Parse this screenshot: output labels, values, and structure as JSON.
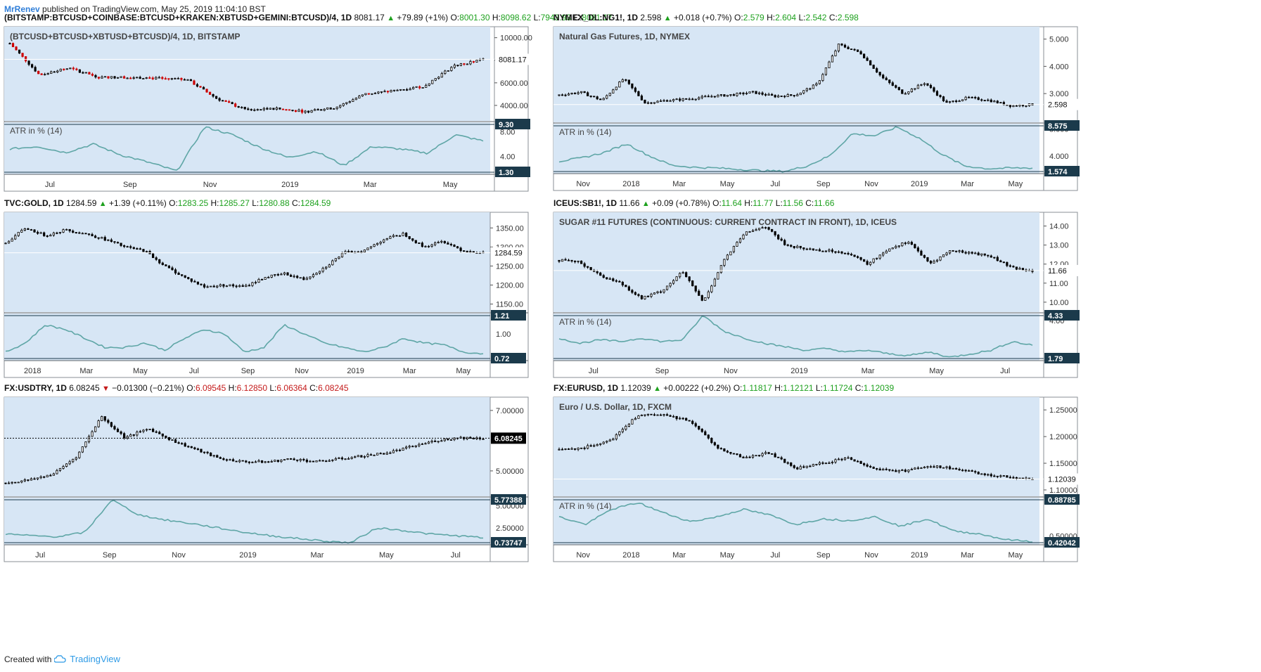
{
  "header": {
    "author": "MrRenev",
    "published": "published on TradingView.com, May 25, 2019 11:04:10 BST"
  },
  "footer": {
    "created_with": "Created with",
    "brand": "TradingView"
  },
  "colors": {
    "panel_bg": "#d7e6f5",
    "atr_line": "#5fa6a6",
    "candle": "#000000",
    "down_candle": "#cc0000",
    "label_bg": "#1b3a4b",
    "green": "#1ea11e",
    "red": "#c41a1a"
  },
  "chart_data": [
    {
      "type": "line",
      "symbol": "(BITSTAMP:BTCUSD+COINBASE:BTCUSD+KRAKEN:XBTUSD+GEMINI:BTCUSD)/4, 1D",
      "last": "8081.17",
      "change": "+79.89 (+1%)",
      "direction": "up",
      "ohlc": {
        "O": "8001.30",
        "H": "8098.62",
        "L": "7943.93",
        "C": "8081.17"
      },
      "legend": "(BTCUSD+BTCUSD+XBTUSD+BTCUSD)/4, 1D, BITSTAMP",
      "price_ticks": [
        "10000.00",
        "8000.00",
        "6000.00",
        "4000.00"
      ],
      "price_tick_values": [
        10000,
        8000,
        6000,
        4000
      ],
      "ylim": [
        3000,
        10600
      ],
      "last_label": "8081.17",
      "x": [
        "2018-05-25",
        "2018-06-20",
        "2018-07-15",
        "2018-08-15",
        "2018-09-15",
        "2018-10-15",
        "2018-11-10",
        "2018-11-20",
        "2018-12-10",
        "2019-01-15",
        "2019-02-10",
        "2019-03-15",
        "2019-04-02",
        "2019-04-20",
        "2019-05-05",
        "2019-05-12",
        "2019-05-25"
      ],
      "values": [
        9500,
        6700,
        7300,
        6500,
        6500,
        6400,
        6300,
        4600,
        3600,
        3700,
        3450,
        3800,
        5000,
        5300,
        5700,
        7500,
        8081
      ],
      "atr": {
        "label": "ATR in % (14)",
        "ticks": [
          "8.00",
          "4.00"
        ],
        "tick_values": [
          8,
          4
        ],
        "ylim": [
          1.3,
          9.3
        ],
        "upper": "9.30",
        "lower": "1.30",
        "values": [
          5.2,
          5.6,
          4.6,
          6.0,
          4.2,
          3.0,
          1.6,
          8.8,
          7.5,
          5.4,
          3.8,
          4.8,
          2.5,
          5.6,
          5.2,
          4.5,
          7.5,
          6.5
        ]
      },
      "x_ticks": [
        "Jul",
        "Sep",
        "Nov",
        "2019",
        "Mar",
        "May"
      ]
    },
    {
      "type": "line",
      "symbol": "NYMEX_DL:NG1!, 1D",
      "last": "2.598",
      "change": "+0.018 (+0.7%)",
      "direction": "up",
      "ohlc": {
        "O": "2.579",
        "H": "2.604",
        "L": "2.542",
        "C": "2.598"
      },
      "legend": "Natural Gas Futures, 1D, NYMEX",
      "price_ticks": [
        "5.000",
        "4.000",
        "3.000"
      ],
      "price_tick_values": [
        5,
        4,
        3
      ],
      "ylim": [
        2.1,
        5.3
      ],
      "last_label": "2.598",
      "values": [
        2.95,
        3.05,
        2.75,
        3.55,
        2.65,
        2.75,
        2.8,
        2.9,
        2.95,
        3.05,
        2.9,
        2.95,
        3.35,
        4.8,
        4.5,
        3.6,
        3.0,
        3.4,
        2.65,
        2.85,
        2.75,
        2.55,
        2.6
      ],
      "atr": {
        "label": "ATR in % (14)",
        "ticks": [
          "8.000",
          "4.000"
        ],
        "tick_values": [
          8,
          4
        ],
        "ylim": [
          1.574,
          8.575
        ],
        "upper": "8.575",
        "lower": "1.574",
        "values": [
          3.2,
          3.7,
          4.5,
          5.8,
          4.0,
          2.6,
          2.3,
          2.2,
          2.0,
          1.8,
          1.7,
          2.5,
          4.0,
          7.3,
          7.0,
          8.3,
          6.6,
          4.2,
          2.5,
          2.1,
          2.2,
          2.2
        ]
      },
      "x_ticks": [
        "Nov",
        "2018",
        "Mar",
        "May",
        "Jul",
        "Sep",
        "Nov",
        "2019",
        "Mar",
        "May"
      ]
    },
    {
      "type": "line",
      "symbol": "TVC:GOLD, 1D",
      "last": "1284.59",
      "change": "+1.39 (+0.11%)",
      "direction": "up",
      "ohlc": {
        "O": "1283.25",
        "H": "1285.27",
        "L": "1280.88",
        "C": "1284.59"
      },
      "legend": "",
      "price_ticks": [
        "1350.00",
        "1300.00",
        "1250.00",
        "1200.00",
        "1150.00"
      ],
      "price_tick_values": [
        1350,
        1300,
        1250,
        1200,
        1150
      ],
      "ylim": [
        1140,
        1380
      ],
      "last_label": "1284.59",
      "values": [
        1310,
        1350,
        1330,
        1345,
        1335,
        1320,
        1300,
        1290,
        1250,
        1220,
        1195,
        1200,
        1195,
        1220,
        1230,
        1215,
        1245,
        1285,
        1290,
        1320,
        1335,
        1300,
        1315,
        1290,
        1285
      ],
      "atr": {
        "label": "",
        "ticks": [
          "1.00"
        ],
        "tick_values": [
          1.0
        ],
        "ylim": [
          0.72,
          1.21
        ],
        "upper": "1.21",
        "lower": "0.72",
        "values": [
          0.8,
          0.9,
          1.1,
          1.05,
          0.95,
          0.85,
          0.85,
          0.9,
          0.82,
          0.95,
          1.05,
          1.0,
          0.8,
          0.85,
          1.1,
          1.0,
          0.9,
          0.85,
          0.8,
          0.85,
          0.95,
          0.9,
          0.88,
          0.8,
          0.78
        ]
      },
      "x_ticks": [
        "2018",
        "Mar",
        "May",
        "Jul",
        "Sep",
        "Nov",
        "2019",
        "Mar",
        "May"
      ]
    },
    {
      "type": "line",
      "symbol": "ICEUS:SB1!, 1D",
      "last": "11.66",
      "change": "+0.09 (+0.78%)",
      "direction": "up",
      "ohlc": {
        "O": "11.64",
        "H": "11.77",
        "L": "11.56",
        "C": "11.66"
      },
      "legend": "SUGAR #11 FUTURES (CONTINUOUS: CURRENT CONTRACT IN FRONT), 1D, ICEUS",
      "price_ticks": [
        "14.00",
        "13.00",
        "12.00",
        "11.00",
        "10.00"
      ],
      "price_tick_values": [
        14,
        13,
        12,
        11,
        10
      ],
      "ylim": [
        9.7,
        14.5
      ],
      "last_label": "11.66",
      "values": [
        12.2,
        12.1,
        11.4,
        11.0,
        10.2,
        10.6,
        11.6,
        10.0,
        12.2,
        13.6,
        14.0,
        13.0,
        12.8,
        12.7,
        12.6,
        12.0,
        12.8,
        13.2,
        12.0,
        12.7,
        12.6,
        12.4,
        11.8,
        11.66
      ],
      "atr": {
        "label": "ATR in % (14)",
        "ticks": [
          "4.00"
        ],
        "tick_values": [
          4.0
        ],
        "ylim": [
          1.79,
          4.33
        ],
        "upper": "4.33",
        "lower": "1.79",
        "values": [
          3.0,
          2.7,
          2.9,
          2.8,
          3.0,
          2.8,
          2.9,
          4.3,
          3.4,
          3.0,
          2.7,
          2.5,
          2.3,
          2.4,
          2.2,
          2.3,
          2.1,
          2.0,
          2.2,
          1.9,
          2.1,
          2.3,
          2.8,
          2.6
        ]
      },
      "x_ticks": [
        "Jul",
        "Sep",
        "Nov",
        "2019",
        "Mar",
        "May",
        "Jul"
      ]
    },
    {
      "type": "line",
      "symbol": "FX:USDTRY, 1D",
      "last": "6.08245",
      "change": "−0.01300 (−0.21%)",
      "direction": "down",
      "ohlc": {
        "O": "6.09545",
        "H": "6.12850",
        "L": "6.06364",
        "C": "6.08245"
      },
      "legend": "",
      "price_ticks": [
        "7.00000",
        "5.00000"
      ],
      "price_tick_values": [
        7,
        5
      ],
      "ylim": [
        4.3,
        7.3
      ],
      "last_label": "6.08245",
      "values": [
        4.6,
        4.7,
        4.9,
        5.5,
        6.8,
        6.1,
        6.4,
        6.0,
        5.7,
        5.4,
        5.3,
        5.3,
        5.4,
        5.3,
        5.4,
        5.5,
        5.6,
        5.8,
        6.0,
        6.1,
        6.08
      ],
      "atr": {
        "label": "",
        "ticks": [
          "5.00000",
          "2.50000"
        ],
        "tick_values": [
          5.0,
          2.5
        ],
        "ylim": [
          0.73747,
          5.77388
        ],
        "upper": "5.77388",
        "lower": "0.73747",
        "values": [
          1.8,
          1.6,
          1.5,
          2.0,
          5.7,
          4.0,
          3.4,
          3.0,
          2.5,
          2.0,
          1.6,
          1.3,
          1.0,
          0.8,
          2.5,
          2.2,
          1.8,
          1.6,
          1.4
        ]
      },
      "x_ticks": [
        "Jul",
        "Sep",
        "Nov",
        "2019",
        "Mar",
        "May",
        "Jul"
      ]
    },
    {
      "type": "line",
      "symbol": "FX:EURUSD, 1D",
      "last": "1.12039",
      "change": "+0.00222 (+0.2%)",
      "direction": "up",
      "ohlc": {
        "O": "1.11817",
        "H": "1.12121",
        "L": "1.11724",
        "C": "1.12039"
      },
      "legend": "Euro / U.S. Dollar, 1D, FXCM",
      "price_ticks": [
        "1.25000",
        "1.20000",
        "1.15000",
        "1.10000"
      ],
      "price_tick_values": [
        1.25,
        1.2,
        1.15,
        1.1
      ],
      "ylim": [
        1.096,
        1.266
      ],
      "last_label": "1.12039",
      "values": [
        1.175,
        1.18,
        1.195,
        1.24,
        1.24,
        1.23,
        1.18,
        1.16,
        1.17,
        1.14,
        1.15,
        1.16,
        1.14,
        1.135,
        1.145,
        1.14,
        1.13,
        1.125,
        1.12
      ],
      "atr": {
        "label": "ATR in % (14)",
        "ticks": [
          "0.50000"
        ],
        "tick_values": [
          0.5
        ],
        "ylim": [
          0.42042,
          0.88785
        ],
        "upper": "0.88785",
        "lower": "0.42042",
        "values": [
          0.7,
          0.62,
          0.78,
          0.85,
          0.74,
          0.65,
          0.7,
          0.78,
          0.72,
          0.62,
          0.68,
          0.66,
          0.7,
          0.6,
          0.68,
          0.55,
          0.52,
          0.46,
          0.44
        ]
      },
      "x_ticks": [
        "Nov",
        "2018",
        "Mar",
        "May",
        "Jul",
        "Sep",
        "Nov",
        "2019",
        "Mar",
        "May"
      ]
    }
  ]
}
